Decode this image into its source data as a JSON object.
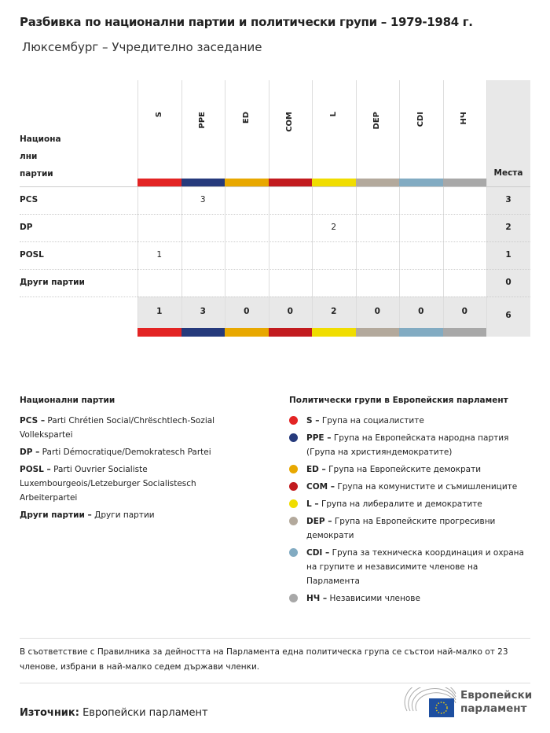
{
  "title": "Разбивка по национални партии и политически групи – 1979-1984 г.",
  "subtitle": "Люксембург – Учредително заседание",
  "chart_data": {
    "type": "table",
    "row_header": "Национа лни партии",
    "total_header": "Места",
    "groups": [
      {
        "code": "S",
        "color": "#e32424"
      },
      {
        "code": "PPE",
        "color": "#263a7c"
      },
      {
        "code": "ED",
        "color": "#e8a800"
      },
      {
        "code": "COM",
        "color": "#c21b1f"
      },
      {
        "code": "L",
        "color": "#f0dd00"
      },
      {
        "code": "DEP",
        "color": "#b3a99c"
      },
      {
        "code": "CDI",
        "color": "#82abc2"
      },
      {
        "code": "НЧ",
        "color": "#a8a8a8"
      }
    ],
    "rows": [
      {
        "party": "PCS",
        "values": [
          "",
          "3",
          "",
          "",
          "",
          "",
          "",
          ""
        ],
        "total": "3"
      },
      {
        "party": "DP",
        "values": [
          "",
          "",
          "",
          "",
          "2",
          "",
          "",
          ""
        ],
        "total": "2"
      },
      {
        "party": "POSL",
        "values": [
          "1",
          "",
          "",
          "",
          "",
          "",
          "",
          ""
        ],
        "total": "1"
      },
      {
        "party": "Други партии",
        "values": [
          "",
          "",
          "",
          "",
          "",
          "",
          "",
          ""
        ],
        "total": "0"
      }
    ],
    "totals": [
      "1",
      "3",
      "0",
      "0",
      "2",
      "0",
      "0",
      "0"
    ],
    "grand_total": "6"
  },
  "national_legend": {
    "title": "Национални партии",
    "items": [
      {
        "code": "PCS –",
        "name": "Parti Chrétien Social/Chrëschtlech-Sozial Vollekspartei"
      },
      {
        "code": "DP –",
        "name": "Parti Démocratique/Demokratesch Partei"
      },
      {
        "code": "POSL –",
        "name": "Parti Ouvrier Socialiste Luxembourgeois/Letzeburger Socialistesch Arbeiterpartei"
      },
      {
        "code": "Други партии –",
        "name": "Други партии"
      }
    ]
  },
  "group_legend": {
    "title": "Политически групи в Европейския парламент",
    "items": [
      {
        "code": "S –",
        "name": "Група на социалистите",
        "color": "#e32424"
      },
      {
        "code": "PPE –",
        "name": "Група на Европейската народна партия (Група на християндемократите)",
        "color": "#263a7c"
      },
      {
        "code": "ED –",
        "name": "Група на Европейските демократи",
        "color": "#e8a800"
      },
      {
        "code": "COM –",
        "name": "Група на комунистите и съмишлениците",
        "color": "#c21b1f"
      },
      {
        "code": "L –",
        "name": "Група на либералите и демократите",
        "color": "#f0dd00"
      },
      {
        "code": "DEP –",
        "name": "Група на Европейските прогресивни демократи",
        "color": "#b3a99c"
      },
      {
        "code": "CDI –",
        "name": "Група за техническа координация и охрана на групите и независимите членове на Парламента",
        "color": "#82abc2"
      },
      {
        "code": "НЧ –",
        "name": "Независими членове",
        "color": "#a8a8a8"
      }
    ]
  },
  "note": "В съответствие с Правилника за дейността на Парламента една политическа група се състои най-малко от 23 членове, избрани в най-малко седем държави членки.",
  "source_label": "Източник:",
  "source": "Европейски парламент",
  "logo_text": [
    "Европейски",
    "парламент"
  ]
}
